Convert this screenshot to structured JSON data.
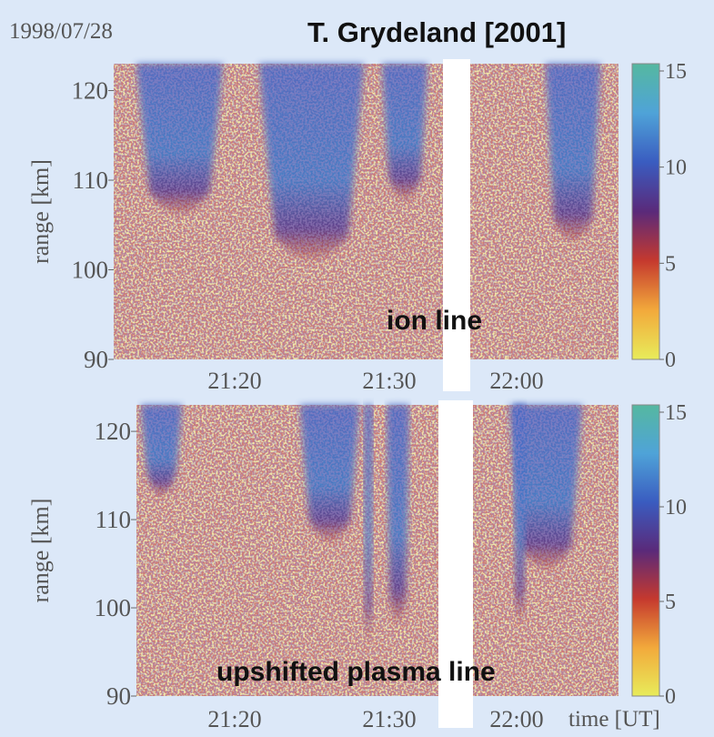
{
  "chart_data": [
    {
      "type": "heatmap",
      "title": "1998/07/28",
      "source": "T. Grydeland [2001]",
      "label": "ion line",
      "ylabel": "range [km]",
      "ylim": [
        90,
        123
      ],
      "yticks": [
        90,
        100,
        110,
        120
      ],
      "xticks": [
        "21:20",
        "21:30",
        "22:00"
      ],
      "clim": [
        0,
        15
      ],
      "cticks": [
        0,
        5,
        10,
        15
      ],
      "colormap": [
        "#e8ec5a",
        "#f2a93b",
        "#c5392e",
        "#5a2a7a",
        "#3a5cc0",
        "#4fa3d8",
        "#55b8a0"
      ]
    },
    {
      "type": "heatmap",
      "label": "upshifted plasma line",
      "xlabel": "time [UT]",
      "ylabel": "range [km]",
      "ylim": [
        90,
        123
      ],
      "yticks": [
        90,
        100,
        110,
        120
      ],
      "xticks": [
        "21:20",
        "21:30",
        "22:00"
      ],
      "clim": [
        0,
        15
      ],
      "cticks": [
        0,
        5,
        10,
        15
      ],
      "colormap": [
        "#e8ec5a",
        "#f2a93b",
        "#c5392e",
        "#5a2a7a",
        "#3a5cc0",
        "#4fa3d8",
        "#55b8a0"
      ]
    }
  ]
}
